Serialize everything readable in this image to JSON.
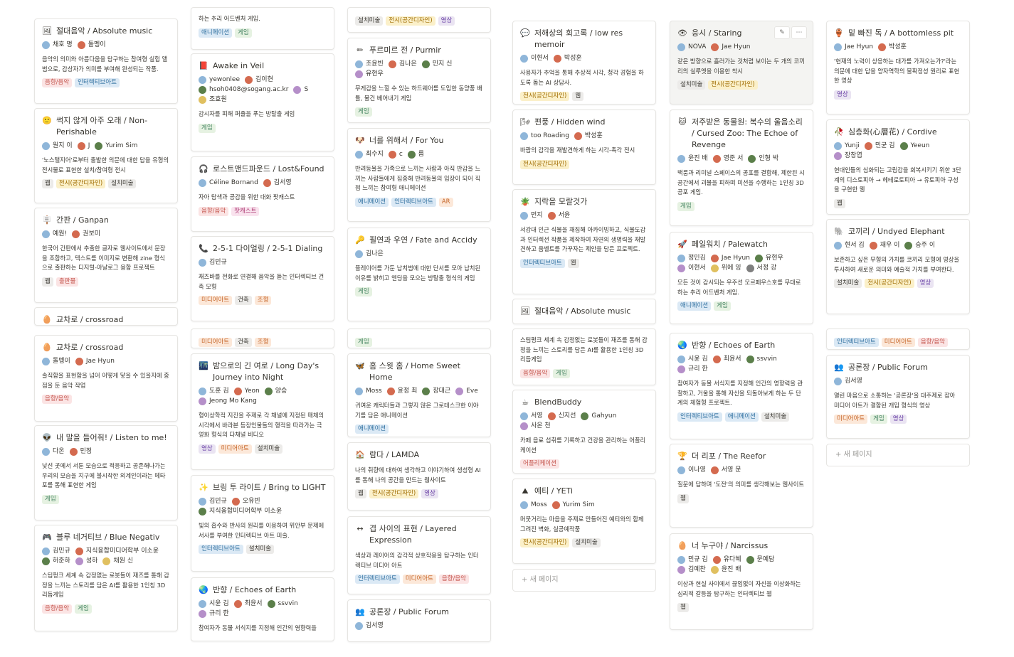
{
  "new_page_label": "새 페이지",
  "cards": {
    "c1a": {
      "title": "절대음악 / Absolute music",
      "icon": "🖼",
      "people": [
        "채호 명",
        "돌멩이"
      ],
      "desc": "음악의 의미와 아름다움을 탐구하는 참여형 실험 앨범으로, 감상자가 의미를 부여해 완성되는 작품.",
      "tags": [
        "음향/음악",
        "인터렉티브아트"
      ]
    },
    "c1b": {
      "title": "썩지 않게 아주 오래 / Non-Perishable",
      "icon": "🙂",
      "people": [
        "원지 이",
        "J",
        "Yurim Sim"
      ],
      "desc": "'노스탤지어'로부터 출발한 의문에 대한 답을 유형의 전시물로 표현한 설치/참여형 전시",
      "tags": [
        "웹",
        "전시(공간디자인)",
        "설치미술"
      ]
    },
    "c1c": {
      "title": "간판 / Ganpan",
      "icon": "🪧",
      "people": [
        "예원!",
        "권보미"
      ],
      "desc": "한국어 간판에서 추출한 글자로 웹사이트에서 문장을 조합하고, 텍스트를 이미지로 변환해 zine 형식으로 출판하는 디지털-아날로그 융합 프로젝트",
      "tags": [
        "웹",
        "출판물"
      ]
    },
    "c1d": {
      "title": "교차로 / crossroad",
      "icon": "🥚",
      "people": [],
      "desc": "",
      "tags": []
    },
    "c1e": {
      "title": "교차로 / crossroad",
      "icon": "🥚",
      "people": [
        "돌멩이",
        "Jae Hyun"
      ],
      "desc": "솔직함을 표현함을 넘어 어떻게 닿을 수 있을지에 중점을 둔 음악 작업",
      "tags": [
        "음향/음악"
      ]
    },
    "c1f": {
      "title": "내 말을 들어줘! / Listen to me!",
      "icon": "👽",
      "people": [
        "다온",
        "민정"
      ],
      "desc": "낯선 곳에서 서툰 모습으로 적응하고 공존해나가는 우리의 모습을 지구에 불시착한 외계인이라는 메타포를 통해 표현한 게임",
      "tags": [
        "게임"
      ]
    },
    "c1g": {
      "title": "블루 네거티브 / Blue Negativ",
      "icon": "🎮",
      "people": [
        "김민규",
        "지식융합미디어학부 이소윤",
        "허준하",
        "성하",
        "채원 신"
      ],
      "desc": "스팀펑크 세계 속 감정없는 로봇들이 재즈를 통해 감정을 느끼는 스토리를 담은 AI를 활용한 1인칭 3D 리듬게임",
      "tags": [
        "음향/음악",
        "게임"
      ]
    },
    "c2a": {
      "title": "",
      "icon": "",
      "people": [],
      "desc": "하는 추리 어드벤처 게임.",
      "tags": [
        "애니메이션",
        "게임"
      ]
    },
    "c2b": {
      "title": "Awake in Veil",
      "icon": "📕",
      "people": [
        "yewonlee",
        "김이현",
        "hsoh0408@sogang.ac.kr",
        "S",
        "조효원"
      ],
      "desc": "감시자를 피해 퍼즐을 푸는 방탈출 게임",
      "tags": [
        "게임"
      ]
    },
    "c2c": {
      "title": "로스트앤드파운드 / Lost&Found",
      "icon": "🎧",
      "people": [
        "Céline Bornand",
        "김서영"
      ],
      "desc": "자아 탐색과 공감을 위한 대화 팟캐스트",
      "tags": [
        "음향/음악",
        "팟캐스트"
      ]
    },
    "c2d": {
      "title": "2-5-1 다이얼링 / 2-5-1 Dialing",
      "icon": "📞",
      "people": [
        "김민규"
      ],
      "desc": "재즈바를 전화로 연결해 음악을 듣는 인터렉티브 건축 모형",
      "tags": [
        "미디어아트",
        "건축",
        "조형"
      ]
    },
    "c2e": {
      "title": "",
      "icon": "",
      "people": [],
      "desc": "",
      "tags": [
        "미디어아트",
        "건축",
        "조형"
      ]
    },
    "c2f": {
      "title": "밤으로의 긴 여로 / Long Day's Journey into Night",
      "icon": "🌃",
      "people": [
        "도훈 김",
        "Yeon",
        "양승",
        "Jeong Mo Kang"
      ],
      "desc": "형이상학적 지진을 주제로 각 채널에 지정된 매체의 시각에서 바라본 등장인물들의 행적을 따라가는 극영화 형식의 다채널 비디오",
      "tags": [
        "영상",
        "미디어아트",
        "설치미술"
      ]
    },
    "c2g": {
      "title": "브링 투 라이트 / Bring to LIGHT",
      "icon": "✨",
      "people": [
        "김민규",
        "오유빈",
        "지식융합미디어학부 이소윤"
      ],
      "desc": "빛의 흡수와 반사의 원리를 이용하여 위안부 문제에 서사를 부여한 인터렉티브 아트 미술.",
      "tags": [
        "인터렉티브아트",
        "설치미술"
      ]
    },
    "c2h": {
      "title": "반향 / Echoes of Earth",
      "icon": "🌏",
      "people": [
        "시윤 김",
        "최윤서",
        "ssvvin",
        "규리 한"
      ],
      "desc": "참여자가 동물 서식지를 지정해 인간의 영향력을",
      "tags": []
    },
    "c3a": {
      "title": "",
      "icon": "",
      "people": [],
      "desc": "",
      "tags": [
        "설치미술",
        "전시(공간디자인)",
        "영상"
      ]
    },
    "c3b": {
      "title": "푸르미르 전 / Purmir",
      "icon": "✏",
      "people": [
        "조윤빈",
        "김나은",
        "민지 신",
        "유현우"
      ],
      "desc": "무게감을 느낄 수 있는 하드웨어를 도입한 동양풍 배틀, 물건 베어내기 게임",
      "tags": [
        "게임"
      ]
    },
    "c3c": {
      "title": "너를 위해서 / For You",
      "icon": "🐶",
      "people": [
        "최수지",
        "c",
        "름"
      ],
      "desc": "반려동물을 가족으로 느끼는 사람과 아직 반감을 느끼는 사람들에게 집중해 반려동물의 입장이 되어 직접 느끼는 참여형 애니메이션",
      "tags": [
        "애니메이션",
        "인터렉티브아트",
        "AR"
      ]
    },
    "c3d": {
      "title": "필연과 우연 / Fate and Accidy",
      "icon": "🔑",
      "people": [
        "김나은"
      ],
      "desc": "플레이어를 가둔 납치범에 대한 단서를 모아 납치된 이유를 밝히고 엔딩을 모으는 방탈출 형식의 게임",
      "tags": [
        "게임"
      ]
    },
    "c3e": {
      "title": "",
      "icon": "",
      "people": [],
      "desc": "",
      "tags": [
        "게임"
      ]
    },
    "c3f": {
      "title": "홈 스윗 홈 / Home Sweet Home",
      "icon": "🦋",
      "people": [
        "Moss",
        "윤정 최",
        "장대근",
        "Eve"
      ],
      "desc": "귀여운 캐릭터들과 그렇지 않은 그로테스크한 이야기를 담은 애니메이션",
      "tags": [
        "애니메이션"
      ]
    },
    "c3g": {
      "title": "람다 / LAMDA",
      "icon": "🏠",
      "people": [],
      "desc": "나의 취향에 대하여 생각하고 이야기하여 생성형 AI를 통해 나의 공간을 만드는 웹사이트",
      "tags": [
        "웹",
        "전시(공간디자인)",
        "영상"
      ]
    },
    "c3h": {
      "title": "겹 사이의 표현 / Layered Expression",
      "icon": "↔",
      "people": [],
      "desc": "색상과 레이어의 감각적 상호작용을 탐구하는 인터렉티브 미디어 아트",
      "tags": [
        "인터렉티브아트",
        "미디어아트",
        "음향/음악"
      ]
    },
    "c3i": {
      "title": "공론장 / Public Forum",
      "icon": "👥",
      "people": [
        "김서영"
      ],
      "desc": "",
      "tags": []
    },
    "c4a": {
      "title": "저해상의 회고록 / low res memoir",
      "icon": "💬",
      "people": [
        "이현서",
        "박성훈"
      ],
      "desc": "사용자가 추억을 통해 추상적 시각, 청각 경험을 하도록 돕는 AI 상담사.",
      "tags": [
        "전시(공간디자인)",
        "웹"
      ]
    },
    "c4b": {
      "title": "편풍 / Hidden wind",
      "icon": "🌬",
      "people": [
        "too Roading",
        "박성훈"
      ],
      "desc": "바람의 감각을 재발견하게 하는 시각-촉각 전시",
      "tags": [
        "전시(공간디자인)"
      ]
    },
    "c4c": {
      "title": "지락을 모랄것가",
      "icon": "🪴",
      "people": [
        "먼지",
        "서윤"
      ],
      "desc": "서강대 인근 식물을 채집해 아카이빙하고, 식물도감과 인터렉션 작품을 제작하여 자연의 생명력을 재발견하고 움벨트를 가꾸자는 제안을 담은 프로젝트.",
      "tags": [
        "인터렉티브아트",
        "웹"
      ]
    },
    "c4d": {
      "title": "절대음악 / Absolute music",
      "icon": "🖼",
      "people": [],
      "desc": "",
      "tags": []
    },
    "c4e": {
      "title": "",
      "icon": "",
      "people": [],
      "desc": "스팀펑크 세계 속 감정없는 로봇들이 재즈를 통해 감정을 느끼는 스토리를 담은 AI를 활용한 1인칭 3D 리듬게임",
      "tags": [
        "음향/음악",
        "게임"
      ]
    },
    "c4f": {
      "title": "BlendBuddy",
      "icon": "☕",
      "people": [
        "서영",
        "신지선",
        "Gahyun",
        "사온 천"
      ],
      "desc": "카페 음료 섭취를 기록하고 건강을 관리하는 어플리케이션",
      "tags": [
        "어플리케이션"
      ]
    },
    "c4g": {
      "title": "예티 / YETi",
      "icon": "⛰",
      "people": [
        "Moss",
        "Yurim Sim"
      ],
      "desc": "머뭇거리는 마음을 주제로 만들어진 예티와의 함께 그려진 벽화, 실공예작품",
      "tags": [
        "전시(공간디자인)",
        "설치미술"
      ]
    },
    "c5a": {
      "title": "응시 / Staring",
      "icon": "👁",
      "people": [
        "NOVA",
        "Jae Hyun"
      ],
      "desc": "같은 방향으로 흘러가는 것처럼 보이는 두 개의 코끼리의 실루엣을 이용한 착시",
      "tags": [
        "설치미술",
        "전시(공간디자인)"
      ]
    },
    "c5b": {
      "title": "저주받은 동물원: 복수의 울음소리 / Cursed Zoo: The Echoe of Revenge",
      "icon": "🐱",
      "people": [
        "윤진 배",
        "영준 서",
        "인형 박"
      ],
      "desc": "백룸과 리미널 스페이스의 공포를 결합해, 제한된 시공간에서 괴물을 피하며 미션을 수행하는 1인칭 3D 공포 게임.",
      "tags": [
        "게임"
      ]
    },
    "c5c": {
      "title": "페일워치 / Palewatch",
      "icon": "🚀",
      "people": [
        "정민김",
        "Jae Hyun",
        "유현우",
        "이현서",
        "위에 잉",
        "서정 강"
      ],
      "desc": "모든 것이 감시되는 우주선 모르페우스호를 무대로 하는 추리 어드벤처 게임.",
      "tags": [
        "애니메이션",
        "게임"
      ]
    },
    "c5d": {
      "title": "반향 / Echoes of Earth",
      "icon": "🌏",
      "people": [
        "시윤 김",
        "최윤서",
        "ssvvin",
        "규리 한"
      ],
      "desc": "참여자가 동물 서식지를 지정해 인간의 영향력을 관찰하고, 거울을 통해 자신을 되돌아보게 하는 두 단계의 체험형 프로젝트.",
      "tags": [
        "인터렉티브아트",
        "애니메이션",
        "설치미술"
      ]
    },
    "c5e": {
      "title": "더 리포 / The Reefor",
      "icon": "🏆",
      "people": [
        "이나영",
        "서영 문"
      ],
      "desc": "질문에 답하며 '도전'의 의미를 생각해보는 웹사이트",
      "tags": [
        "웹"
      ]
    },
    "c5f": {
      "title": "너 누구야 / Narcissus",
      "icon": "🥚",
      "people": [
        "민규 김",
        "유다혜",
        "문예담",
        "김예찬",
        "윤진 배"
      ],
      "desc": "이상과 현실 사이에서 끊임없이 자신을 이상화하는 심리적 갈등을 탐구하는 인터렉티브 웹",
      "tags": [
        "웹"
      ]
    },
    "c6a": {
      "title": "밑 빠진 독 / A bottomless pit",
      "icon": "🏺",
      "people": [
        "Jae Hyun",
        "박성훈"
      ],
      "desc": "'현재의 노력이 상응하는 대가를 가져오는가?'라는 의문에 대한 답을 양자역학의 불확정성 원리로 표현한 영상",
      "tags": [
        "영상"
      ]
    },
    "c6b": {
      "title": "심층화(心層花) / Cordive",
      "icon": "🥀",
      "people": [
        "Yunji",
        "민균 김",
        "Yeeun",
        "장창엽"
      ],
      "desc": "현대인들의 심화되는 고립감을 회복시키기 위한 3단계의 디스토피아 → 헤테로토피아 → 유토피아 구성을 구현한 웹",
      "tags": [
        "웹"
      ]
    },
    "c6c": {
      "title": "코끼리 / Undyed Elephant",
      "icon": "🐘",
      "people": [
        "현서 김",
        "재우 이",
        "승주 이"
      ],
      "desc": "보존하고 싶은 무형의 가치를 코끼리 모형에 영상을 투사하여 새로운 의미와 예술적 가치를 부여한다.",
      "tags": [
        "설치미술",
        "전시(공간디자인)",
        "영상"
      ]
    },
    "c6d": {
      "title": "",
      "icon": "",
      "people": [],
      "desc": "",
      "tags": [
        "인터렉티브아트",
        "미디어아트",
        "음향/음악"
      ]
    },
    "c6e": {
      "title": "공론장 / Public Forum",
      "icon": "👥",
      "people": [
        "김서영"
      ],
      "desc": "열린 마음으로 소통하는 '공론장'을 대주제로 잡아 미디어 아트가 결합된 개입 형식의 영상",
      "tags": [
        "미디어아트",
        "게임",
        "영상"
      ]
    }
  },
  "tag_classes": {
    "음향/음악": "t-audio",
    "인터렉티브아트": "t-interact",
    "웹": "t-web",
    "전시(공간디자인)": "t-space",
    "설치미술": "t-install",
    "출판물": "t-publish",
    "게임": "t-game",
    "팟캐스트": "t-pod",
    "애니메이션": "t-anim",
    "미디어아트": "t-media",
    "건축": "t-arch",
    "조형": "t-sculpt",
    "영상": "t-video",
    "AR": "t-ar",
    "어플리케이션": "t-app"
  },
  "avatar_colors": [
    "#6b4a3a",
    "#c9b28f",
    "#2d2d2d",
    "#8fb6d9",
    "#d46a4f",
    "#5b7f4a",
    "#b58fc9",
    "#e0c060",
    "#7f7f7f",
    "#3f5f8f"
  ]
}
